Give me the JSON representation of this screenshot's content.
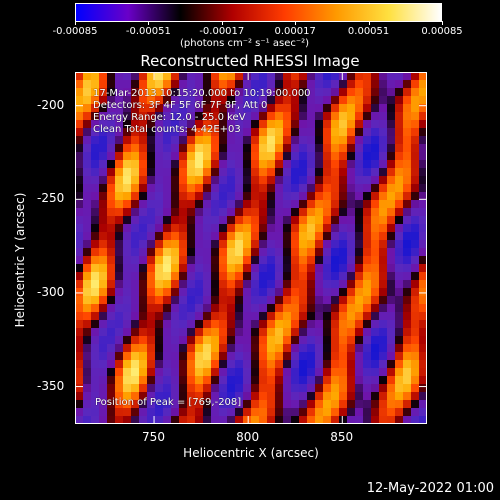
{
  "colorbar": {
    "ticks": [
      "-0.00085",
      "-0.00051",
      "-0.00017",
      "0.00017",
      "0.00051",
      "0.00085"
    ],
    "unit": "(photons cm⁻² s⁻¹ asec⁻²)",
    "range": [
      -0.00085,
      0.00085
    ],
    "colors": [
      "#0000ff",
      "#6a00c8",
      "#000000",
      "#b00000",
      "#ff3c00",
      "#ff9a00",
      "#ffe040",
      "#ffffff"
    ]
  },
  "chart_data": {
    "type": "heatmap",
    "title": "Reconstructed RHESSI Image",
    "xlabel": "Heliocentric X (arcsec)",
    "ylabel": "Heliocentric Y (arcsec)",
    "xlim": [
      708,
      895
    ],
    "ylim": [
      -370,
      -182
    ],
    "xticks": [
      750,
      800,
      850
    ],
    "yticks": [
      -200,
      -250,
      -300,
      -350
    ],
    "peak": [
      769,
      -208
    ]
  },
  "annotations": {
    "line1": "17-Mar-2013 10:15:20.000 to 10:19:00.000",
    "line2": "Detectors: 3F 4F 5F 6F 7F 8F, Att 0",
    "line3": "Energy Range: 12.0 - 25.0 keV",
    "line4": "Clean    Total counts: 4.42E+03",
    "peak": "Position of Peak = [769,-208]"
  },
  "footer": "12-May-2022 01:00"
}
